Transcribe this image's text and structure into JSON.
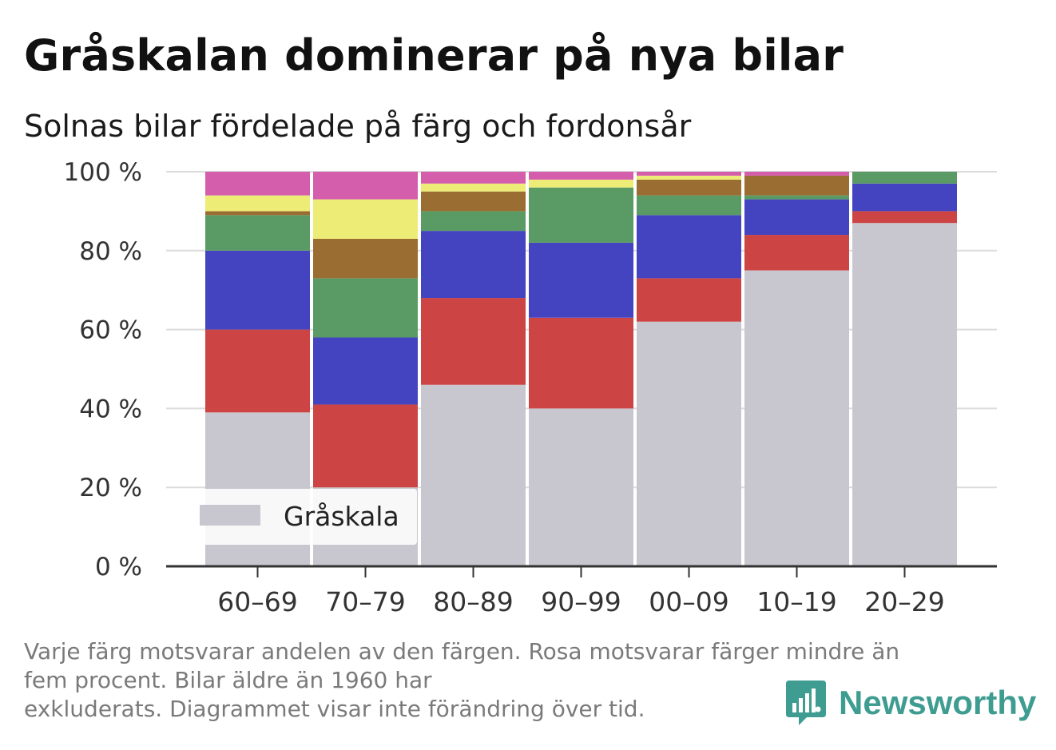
{
  "title": "Gråskalan dominerar på nya bilar",
  "subtitle": "Solnas bilar fördelade på färg och fordonsår",
  "footnote": {
    "line1": "Varje färg motsvarar andelen av den färgen. Rosa motsvarar färger mindre än",
    "line2": "fem procent. Bilar äldre än 1960 har",
    "line3": "exkluderats. Diagrammet visar inte förändring över tid."
  },
  "brand": {
    "name": "Newsworthy",
    "color": "#3e9c91",
    "icon": "newsworthy-logo-icon"
  },
  "chart_data": {
    "type": "bar",
    "stacked": true,
    "categories": [
      "60–69",
      "70–79",
      "80–89",
      "90–99",
      "00–09",
      "10–19",
      "20–29"
    ],
    "series": [
      {
        "name": "Gråskala",
        "color": "#c8c7cf",
        "values": [
          39,
          20,
          46,
          40,
          62,
          75,
          87
        ]
      },
      {
        "color": "#cc4444",
        "values": [
          21,
          21,
          22,
          23,
          11,
          9,
          3
        ]
      },
      {
        "color": "#4444c0",
        "values": [
          20,
          17,
          17,
          19,
          16,
          9,
          7
        ]
      },
      {
        "color": "#5a9a64",
        "values": [
          9,
          15,
          5,
          14,
          5,
          1,
          3
        ]
      },
      {
        "color": "#9a6e32",
        "values": [
          1,
          10,
          5,
          0,
          4,
          5,
          0
        ]
      },
      {
        "color": "#ecec76",
        "values": [
          4,
          10,
          2,
          2,
          1,
          0,
          0.5
        ]
      },
      {
        "color": "#d45eab",
        "values": [
          6,
          7,
          3,
          2,
          1,
          1,
          0.5
        ]
      }
    ],
    "ylim": [
      0,
      100
    ],
    "yticks": [
      0,
      20,
      40,
      60,
      80,
      100
    ],
    "ytick_labels": [
      "0 %",
      "20 %",
      "40 %",
      "60 %",
      "80 %",
      "100 %"
    ],
    "grid": true,
    "legend": {
      "label": "Gråskala",
      "position": "bottom-left"
    }
  }
}
